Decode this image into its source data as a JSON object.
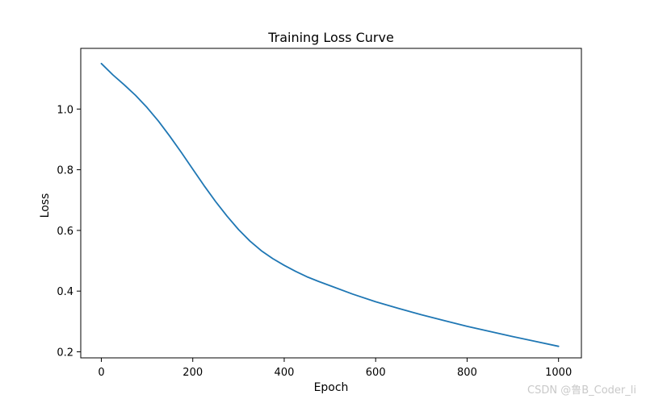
{
  "chart_data": {
    "type": "line",
    "title": "Training Loss Curve",
    "xlabel": "Epoch",
    "ylabel": "Loss",
    "xlim": [
      -45,
      1050
    ],
    "ylim": [
      0.18,
      1.2
    ],
    "xticks": [
      0,
      200,
      400,
      600,
      800,
      1000
    ],
    "yticks": [
      0.2,
      0.4,
      0.6,
      0.8,
      1.0
    ],
    "ytick_labels": [
      "0.2",
      "0.4",
      "0.6",
      "0.8",
      "1.0"
    ],
    "grid": false,
    "series": [
      {
        "color": "#1f77b4",
        "x": [
          0,
          25,
          50,
          75,
          100,
          125,
          150,
          175,
          200,
          225,
          250,
          275,
          300,
          325,
          350,
          375,
          400,
          425,
          450,
          475,
          500,
          550,
          600,
          650,
          700,
          750,
          800,
          850,
          900,
          950,
          1000
        ],
        "y": [
          1.15,
          1.113,
          1.08,
          1.045,
          1.005,
          0.96,
          0.91,
          0.857,
          0.802,
          0.747,
          0.695,
          0.647,
          0.603,
          0.565,
          0.533,
          0.507,
          0.485,
          0.465,
          0.447,
          0.432,
          0.418,
          0.39,
          0.365,
          0.343,
          0.322,
          0.303,
          0.284,
          0.267,
          0.25,
          0.234,
          0.218
        ]
      }
    ]
  },
  "watermark": "CSDN @鲁B_Coder_li"
}
